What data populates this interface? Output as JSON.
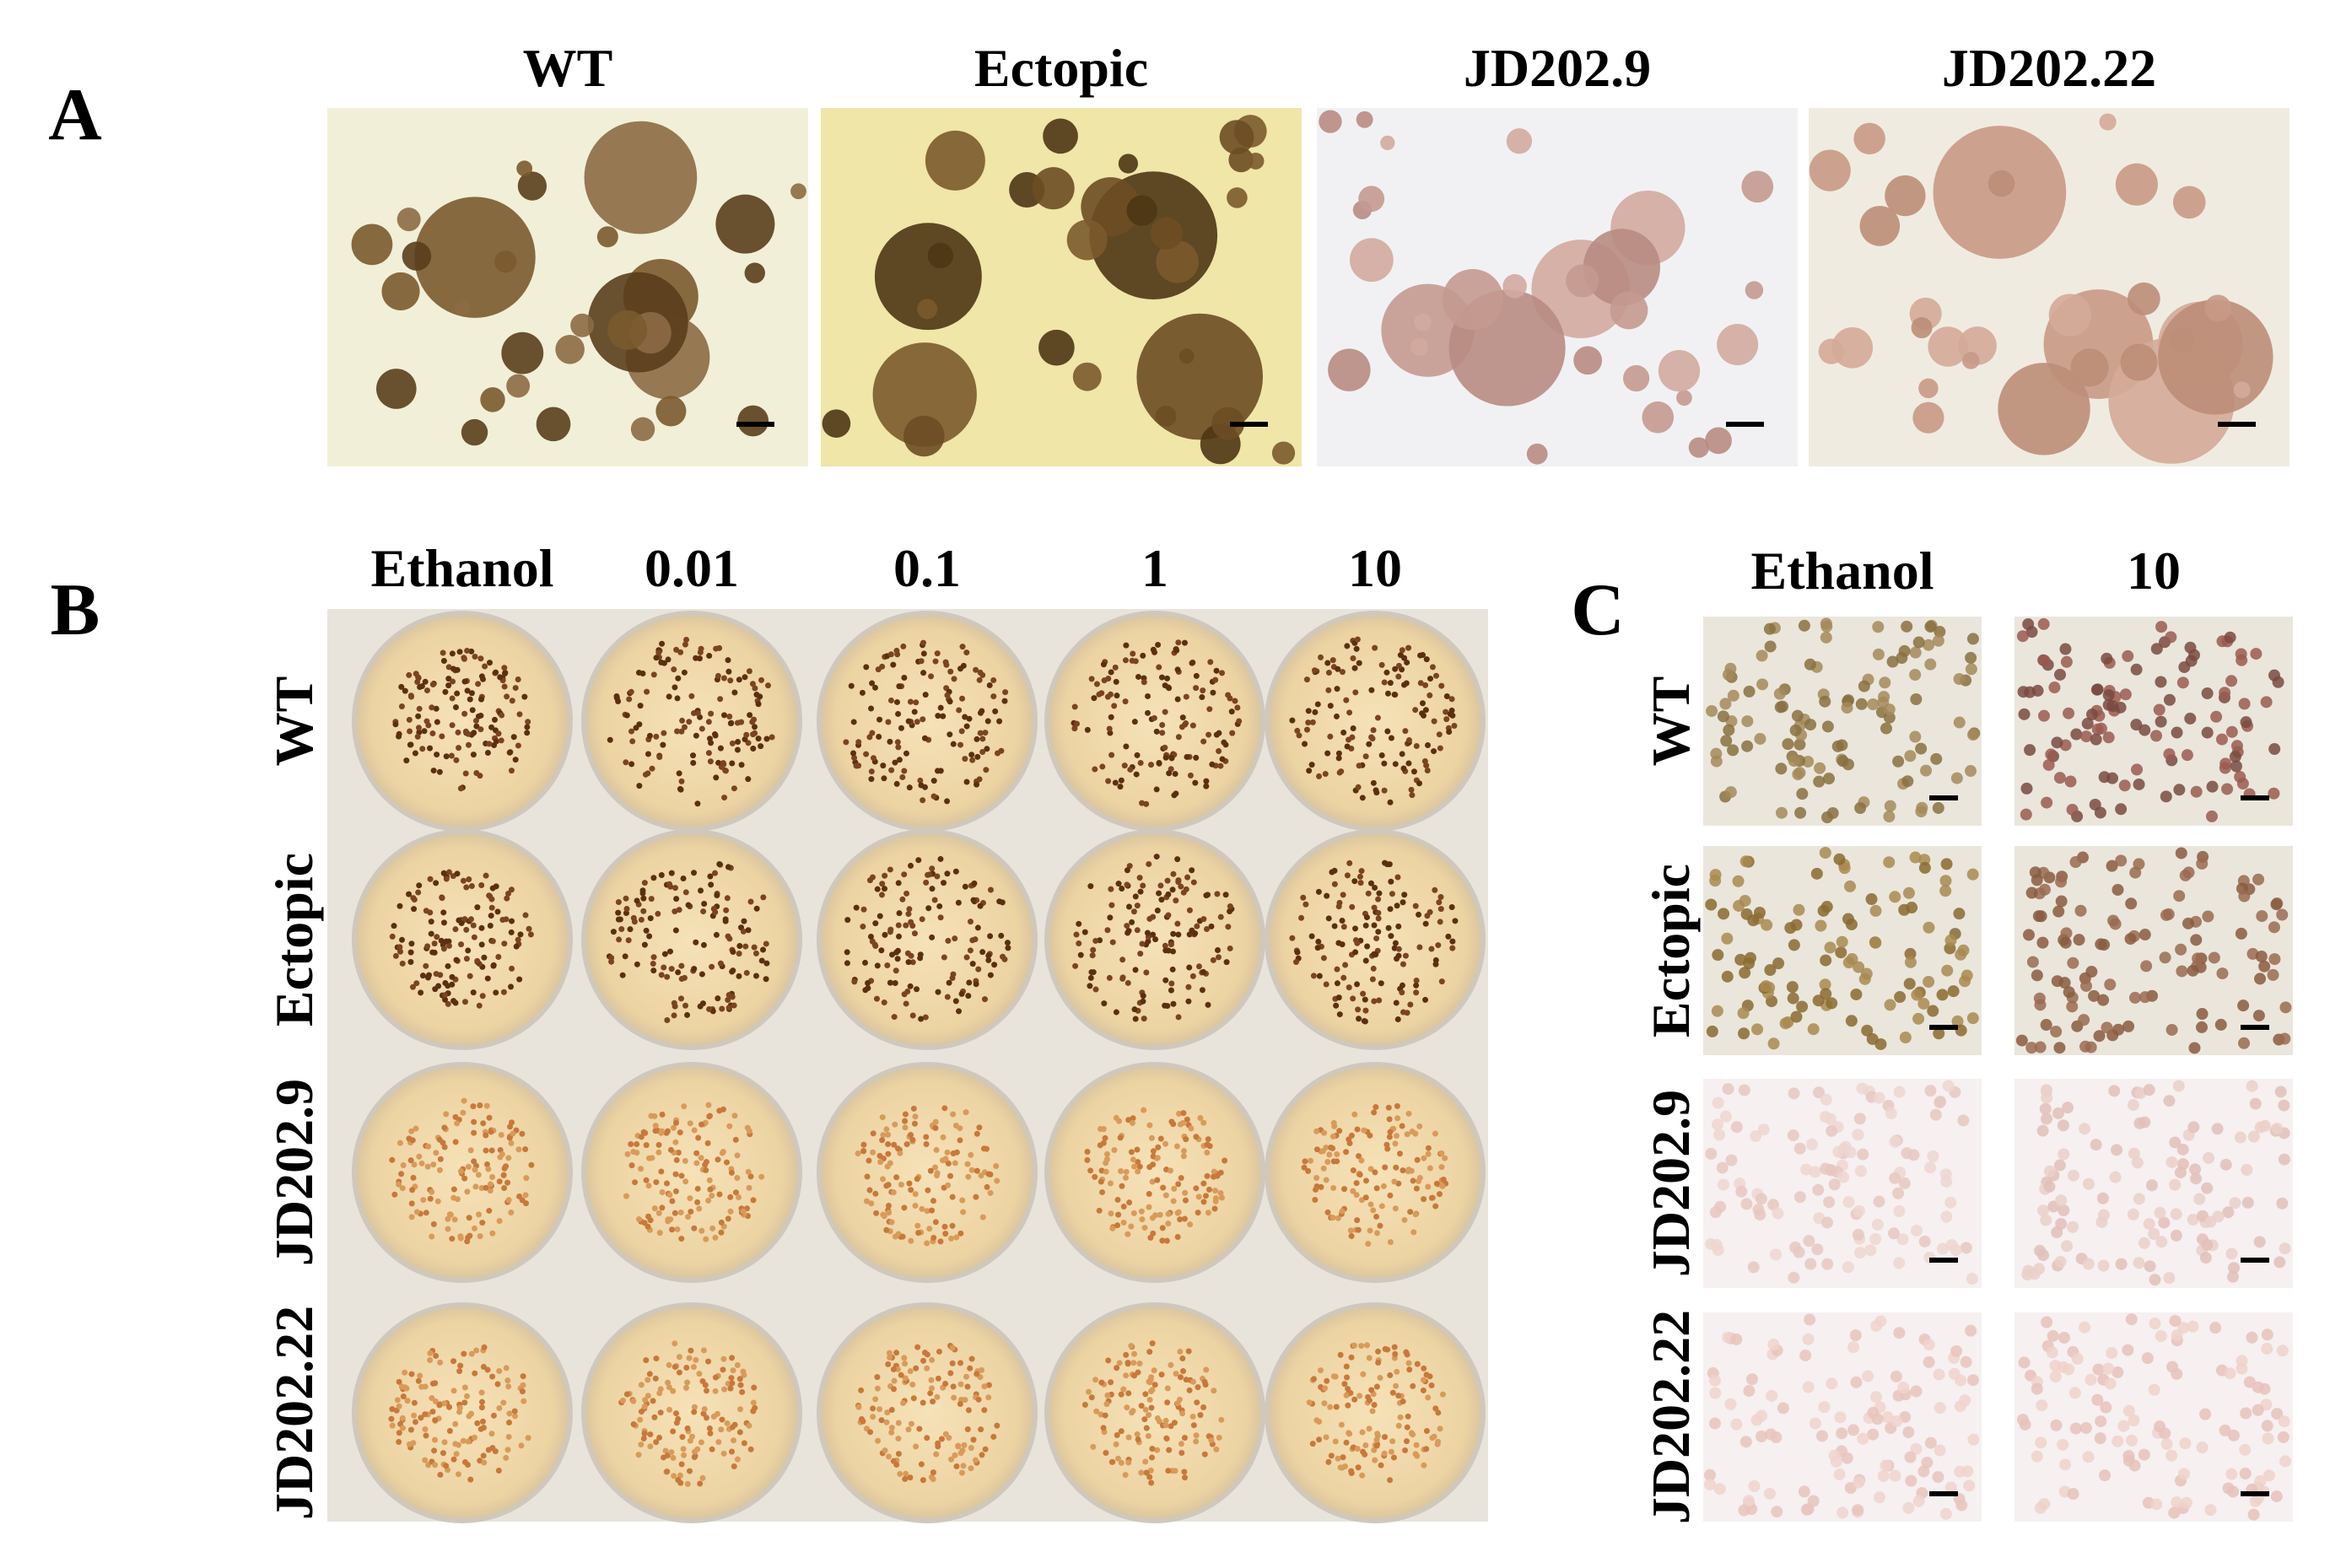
{
  "panel_a": {
    "label": "A",
    "columns": [
      "WT",
      "Ectopic",
      "JD202.9",
      "JD202.22"
    ]
  },
  "panel_b": {
    "label": "B",
    "columns": [
      "Ethanol",
      "0.01",
      "0.1",
      "1",
      "10"
    ],
    "rows": [
      "WT",
      "Ectopic",
      "JD202.9",
      "JD202.22"
    ]
  },
  "panel_c": {
    "label": "C",
    "columns": [
      "Ethanol",
      "10"
    ],
    "rows": [
      "WT",
      "Ectopic",
      "JD202.9",
      "JD202.22"
    ]
  }
}
